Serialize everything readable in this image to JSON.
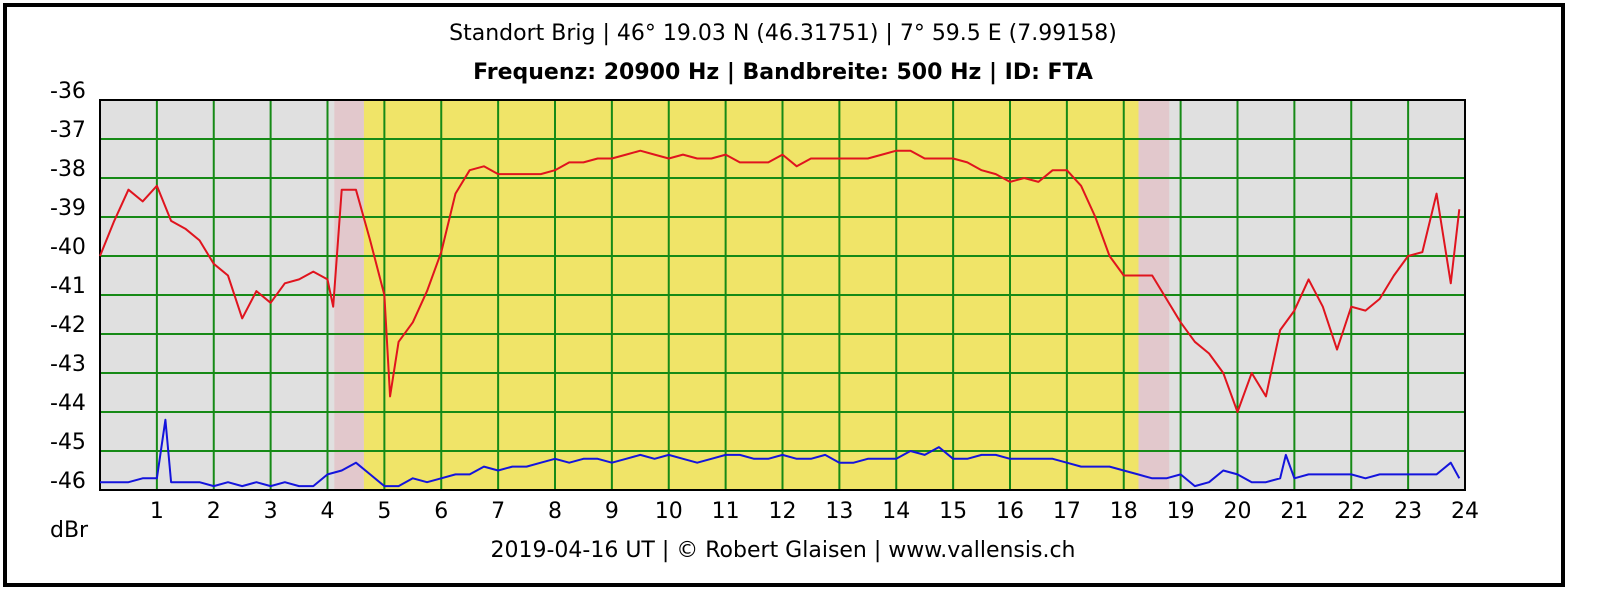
{
  "chart_data": {
    "type": "line",
    "title": "Standort Brig | 46° 19.03 N (46.31751) | 7° 59.5 E (7.99158)",
    "subtitle": "Frequenz: 20900 Hz | Bandbreite: 500 Hz | ID: FTA",
    "footer": "2019-04-16 UT | © Robert Glaisen | www.vallensis.ch",
    "ylabel": "dBr",
    "xlim": [
      0,
      24
    ],
    "xticks": [
      1,
      2,
      3,
      4,
      5,
      6,
      7,
      8,
      9,
      10,
      11,
      12,
      13,
      14,
      15,
      16,
      17,
      18,
      19,
      20,
      21,
      22,
      23,
      24
    ],
    "ylim": [
      -46,
      -36
    ],
    "yticks": [
      -36,
      -37,
      -38,
      -39,
      -40,
      -41,
      -42,
      -43,
      -44,
      -45,
      -46
    ],
    "grid": true,
    "grid_color": "#168a16",
    "plot_color": "#e0e0e0",
    "bands": [
      {
        "x": [
          4.12,
          4.64
        ],
        "color": "#e2c8cc"
      },
      {
        "x": [
          4.64,
          18.26
        ],
        "color": "#f0e468"
      },
      {
        "x": [
          18.26,
          18.8
        ],
        "color": "#e2c8cc"
      }
    ],
    "series": [
      {
        "color": "#e0141e",
        "x": [
          0,
          0.25,
          0.5,
          0.75,
          1,
          1.25,
          1.5,
          1.75,
          2,
          2.25,
          2.5,
          2.75,
          3,
          3.25,
          3.5,
          3.75,
          4,
          4.1,
          4.25,
          4.5,
          4.75,
          5,
          5.1,
          5.25,
          5.5,
          5.75,
          6,
          6.25,
          6.5,
          6.75,
          7,
          7.25,
          7.5,
          7.75,
          8,
          8.25,
          8.5,
          8.75,
          9,
          9.25,
          9.5,
          9.75,
          10,
          10.25,
          10.5,
          10.75,
          11,
          11.25,
          11.5,
          11.75,
          12,
          12.25,
          12.5,
          12.75,
          13,
          13.25,
          13.5,
          13.75,
          14,
          14.25,
          14.5,
          14.75,
          15,
          15.25,
          15.5,
          15.75,
          16,
          16.25,
          16.5,
          16.75,
          17,
          17.25,
          17.5,
          17.75,
          18,
          18.25,
          18.5,
          18.75,
          19,
          19.25,
          19.5,
          19.75,
          20,
          20.25,
          20.5,
          20.75,
          21,
          21.25,
          21.5,
          21.75,
          22,
          22.25,
          22.5,
          22.75,
          23,
          23.25,
          23.5,
          23.75,
          23.9
        ],
        "values": [
          -40.0,
          -39.1,
          -38.3,
          -38.6,
          -38.2,
          -39.1,
          -39.3,
          -39.6,
          -40.2,
          -40.5,
          -41.6,
          -40.9,
          -41.2,
          -40.7,
          -40.6,
          -40.4,
          -40.6,
          -41.3,
          -38.3,
          -38.3,
          -39.6,
          -41.0,
          -43.6,
          -42.2,
          -41.7,
          -40.9,
          -39.9,
          -38.4,
          -37.8,
          -37.7,
          -37.9,
          -37.9,
          -37.9,
          -37.9,
          -37.8,
          -37.6,
          -37.6,
          -37.5,
          -37.5,
          -37.4,
          -37.3,
          -37.4,
          -37.5,
          -37.4,
          -37.5,
          -37.5,
          -37.4,
          -37.6,
          -37.6,
          -37.6,
          -37.4,
          -37.7,
          -37.5,
          -37.5,
          -37.5,
          -37.5,
          -37.5,
          -37.4,
          -37.3,
          -37.3,
          -37.5,
          -37.5,
          -37.5,
          -37.6,
          -37.8,
          -37.9,
          -38.1,
          -38.0,
          -38.1,
          -37.8,
          -37.8,
          -38.2,
          -39.0,
          -40.0,
          -40.5,
          -40.5,
          -40.5,
          -41.1,
          -41.7,
          -42.2,
          -42.5,
          -43.0,
          -44.0,
          -43.0,
          -43.6,
          -41.9,
          -41.4,
          -40.6,
          -41.3,
          -42.4,
          -41.3,
          -41.4,
          -41.1,
          -40.5,
          -40.0,
          -39.9,
          -38.4,
          -40.7,
          -38.8
        ]
      },
      {
        "color": "#1414dc",
        "x": [
          0,
          0.25,
          0.5,
          0.75,
          1,
          1.15,
          1.25,
          1.5,
          1.75,
          2,
          2.25,
          2.5,
          2.75,
          3,
          3.25,
          3.5,
          3.75,
          4,
          4.25,
          4.5,
          4.75,
          5,
          5.25,
          5.5,
          5.75,
          6,
          6.25,
          6.5,
          6.75,
          7,
          7.25,
          7.5,
          7.75,
          8,
          8.25,
          8.5,
          8.75,
          9,
          9.25,
          9.5,
          9.75,
          10,
          10.25,
          10.5,
          10.75,
          11,
          11.25,
          11.5,
          11.75,
          12,
          12.25,
          12.5,
          12.75,
          13,
          13.25,
          13.5,
          13.75,
          14,
          14.25,
          14.5,
          14.75,
          15,
          15.25,
          15.5,
          15.75,
          16,
          16.25,
          16.5,
          16.75,
          17,
          17.25,
          17.5,
          17.75,
          18,
          18.25,
          18.5,
          18.75,
          19,
          19.25,
          19.5,
          19.75,
          20,
          20.25,
          20.5,
          20.75,
          20.85,
          21,
          21.25,
          21.5,
          21.75,
          22,
          22.25,
          22.5,
          22.75,
          23,
          23.25,
          23.5,
          23.75,
          23.9
        ],
        "values": [
          -45.8,
          -45.8,
          -45.8,
          -45.7,
          -45.7,
          -44.2,
          -45.8,
          -45.8,
          -45.8,
          -45.9,
          -45.8,
          -45.9,
          -45.8,
          -45.9,
          -45.8,
          -45.9,
          -45.9,
          -45.6,
          -45.5,
          -45.3,
          -45.6,
          -45.9,
          -45.9,
          -45.7,
          -45.8,
          -45.7,
          -45.6,
          -45.6,
          -45.4,
          -45.5,
          -45.4,
          -45.4,
          -45.3,
          -45.2,
          -45.3,
          -45.2,
          -45.2,
          -45.3,
          -45.2,
          -45.1,
          -45.2,
          -45.1,
          -45.2,
          -45.3,
          -45.2,
          -45.1,
          -45.1,
          -45.2,
          -45.2,
          -45.1,
          -45.2,
          -45.2,
          -45.1,
          -45.3,
          -45.3,
          -45.2,
          -45.2,
          -45.2,
          -45.0,
          -45.1,
          -44.9,
          -45.2,
          -45.2,
          -45.1,
          -45.1,
          -45.2,
          -45.2,
          -45.2,
          -45.2,
          -45.3,
          -45.4,
          -45.4,
          -45.4,
          -45.5,
          -45.6,
          -45.7,
          -45.7,
          -45.6,
          -45.9,
          -45.8,
          -45.5,
          -45.6,
          -45.8,
          -45.8,
          -45.7,
          -45.1,
          -45.7,
          -45.6,
          -45.6,
          -45.6,
          -45.6,
          -45.7,
          -45.6,
          -45.6,
          -45.6,
          -45.6,
          -45.6,
          -45.3,
          -45.7
        ]
      }
    ]
  }
}
